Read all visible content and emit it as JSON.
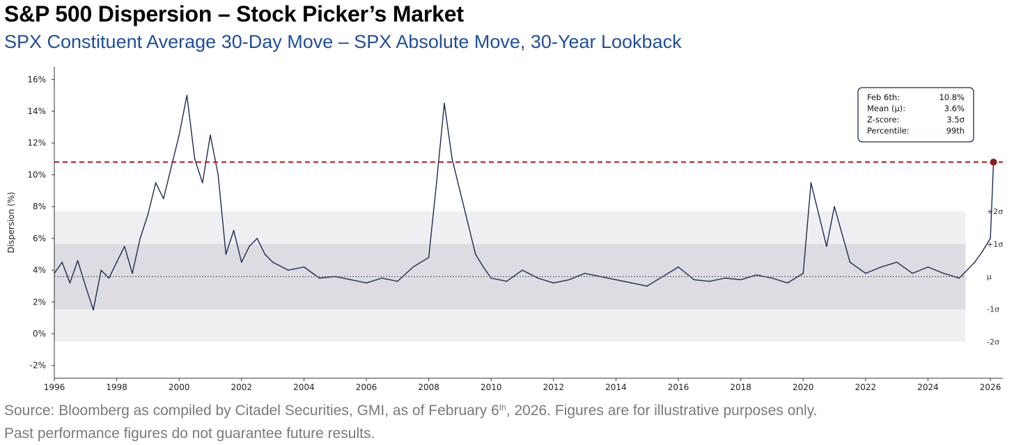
{
  "title": "S&P 500 Dispersion – Stock Picker’s Market",
  "subtitle": "SPX Constituent Average 30-Day Move – SPX Absolute Move, 30-Year Lookback",
  "footnote": {
    "line1_a": "Source: Bloomberg as compiled by Citadel Securities, GMI, as of February 6",
    "line1_sup": "th",
    "line1_b": ", 2026. Figures are for illustrative purposes only.",
    "line2": "Past performance figures do not guarantee future results."
  },
  "chart_data": {
    "type": "line",
    "ylabel": "Dispersion (%)",
    "xlim": [
      1996,
      2026.4
    ],
    "ylim": [
      -2.8,
      16.8
    ],
    "yticks": [
      -2,
      0,
      2,
      4,
      6,
      8,
      10,
      12,
      14,
      16
    ],
    "ytick_labels": [
      "-2%",
      "0%",
      "2%",
      "4%",
      "6%",
      "8%",
      "10%",
      "12%",
      "14%",
      "16%"
    ],
    "xticks": [
      1996,
      1998,
      2000,
      2002,
      2004,
      2006,
      2008,
      2010,
      2012,
      2014,
      2016,
      2018,
      2020,
      2022,
      2024,
      2026
    ],
    "xtick_labels": [
      "1996",
      "1998",
      "2000",
      "2002",
      "2004",
      "2006",
      "2008",
      "2010",
      "2012",
      "2014",
      "2016",
      "2018",
      "2020",
      "2022",
      "2024",
      "2026"
    ],
    "grid": false,
    "series_color": "#1c2a52",
    "mean": 3.6,
    "std": 2.05,
    "bands": [
      {
        "label": "+2σ",
        "value": 7.7
      },
      {
        "label": "+1σ",
        "value": 5.65
      },
      {
        "label": "μ",
        "value": 3.6
      },
      {
        "label": "-1σ",
        "value": 1.55
      },
      {
        "label": "-2σ",
        "value": -0.5
      }
    ],
    "band_colors": {
      "outer": "#efeff2",
      "inner": "#dcdce2"
    },
    "current_line": {
      "value": 10.8,
      "color": "#b01c1c"
    },
    "current_point": {
      "x": 2026.1,
      "y": 10.8,
      "color": "#8b1a1a"
    },
    "stats_box": {
      "rows": [
        {
          "label": "Feb 6th:",
          "value": "10.8%"
        },
        {
          "label": "Mean (μ):",
          "value": "3.6%"
        },
        {
          "label": "Z-score:",
          "value": "3.5σ"
        },
        {
          "label": "Percentile:",
          "value": "99th"
        }
      ]
    },
    "series": [
      {
        "x": [
          1996.0,
          1996.25,
          1996.5,
          1996.75,
          1997.0,
          1997.25,
          1997.5,
          1997.75,
          1998.0,
          1998.25,
          1998.5,
          1998.75,
          1999.0,
          1999.25,
          1999.5,
          1999.75,
          2000.0,
          2000.25,
          2000.5,
          2000.75,
          2001.0,
          2001.25,
          2001.5,
          2001.75,
          2002.0,
          2002.25,
          2002.5,
          2002.75,
          2003.0,
          2003.5,
          2004.0,
          2004.5,
          2005.0,
          2005.5,
          2006.0,
          2006.5,
          2007.0,
          2007.5,
          2008.0,
          2008.25,
          2008.5,
          2008.75,
          2009.0,
          2009.25,
          2009.5,
          2009.75,
          2010.0,
          2010.5,
          2011.0,
          2011.5,
          2012.0,
          2012.5,
          2013.0,
          2013.5,
          2014.0,
          2014.5,
          2015.0,
          2015.5,
          2016.0,
          2016.5,
          2017.0,
          2017.5,
          2018.0,
          2018.5,
          2019.0,
          2019.5,
          2020.0,
          2020.25,
          2020.5,
          2020.75,
          2021.0,
          2021.5,
          2022.0,
          2022.5,
          2023.0,
          2023.5,
          2024.0,
          2024.5,
          2025.0,
          2025.5,
          2025.75,
          2026.0,
          2026.1
        ],
        "y": [
          3.8,
          4.5,
          3.2,
          4.6,
          3.0,
          1.5,
          4.0,
          3.5,
          4.5,
          5.5,
          3.8,
          6.0,
          7.5,
          9.5,
          8.5,
          10.5,
          12.5,
          15.0,
          11.0,
          9.5,
          12.5,
          10.0,
          5.0,
          6.5,
          4.5,
          5.5,
          6.0,
          5.0,
          4.5,
          4.0,
          4.2,
          3.5,
          3.6,
          3.4,
          3.2,
          3.5,
          3.3,
          4.2,
          4.8,
          9.5,
          14.5,
          11.0,
          9.0,
          7.0,
          5.0,
          4.2,
          3.5,
          3.3,
          4.0,
          3.5,
          3.2,
          3.4,
          3.8,
          3.6,
          3.4,
          3.2,
          3.0,
          3.6,
          4.2,
          3.4,
          3.3,
          3.5,
          3.4,
          3.7,
          3.5,
          3.2,
          3.8,
          9.5,
          7.5,
          5.5,
          8.0,
          4.5,
          3.8,
          4.2,
          4.5,
          3.8,
          4.2,
          3.8,
          3.5,
          4.5,
          5.2,
          6.0,
          10.8
        ]
      }
    ]
  }
}
